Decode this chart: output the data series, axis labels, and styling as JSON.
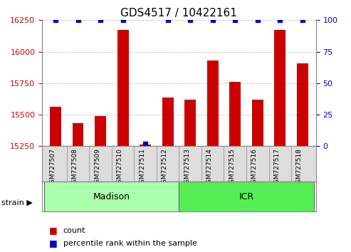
{
  "title": "GDS4517 / 10422161",
  "categories": [
    "GSM727507",
    "GSM727508",
    "GSM727509",
    "GSM727510",
    "GSM727511",
    "GSM727512",
    "GSM727513",
    "GSM727514",
    "GSM727515",
    "GSM727516",
    "GSM727517",
    "GSM727518"
  ],
  "counts": [
    15560,
    15430,
    15490,
    16170,
    15265,
    15635,
    15620,
    15930,
    15760,
    15620,
    16170,
    15910
  ],
  "percentiles": [
    100,
    100,
    100,
    100,
    2,
    100,
    100,
    100,
    100,
    100,
    100,
    100
  ],
  "bar_color": "#cc0000",
  "dot_color": "#0000cc",
  "ylim_left": [
    15250,
    16250
  ],
  "ylim_right": [
    0,
    100
  ],
  "yticks_left": [
    15250,
    15500,
    15750,
    16000,
    16250
  ],
  "yticks_right": [
    0,
    25,
    50,
    75,
    100
  ],
  "groups": [
    {
      "label": "Madison",
      "start": 0,
      "end": 5,
      "color": "#aaffaa"
    },
    {
      "label": "ICR",
      "start": 6,
      "end": 11,
      "color": "#55ee55"
    }
  ],
  "group_label_prefix": "strain",
  "legend_count_label": "count",
  "legend_percentile_label": "percentile rank within the sample",
  "title_fontsize": 11,
  "tick_fontsize": 8,
  "label_fontsize": 9,
  "background_color": "#ffffff",
  "tick_area_color": "#dddddd"
}
